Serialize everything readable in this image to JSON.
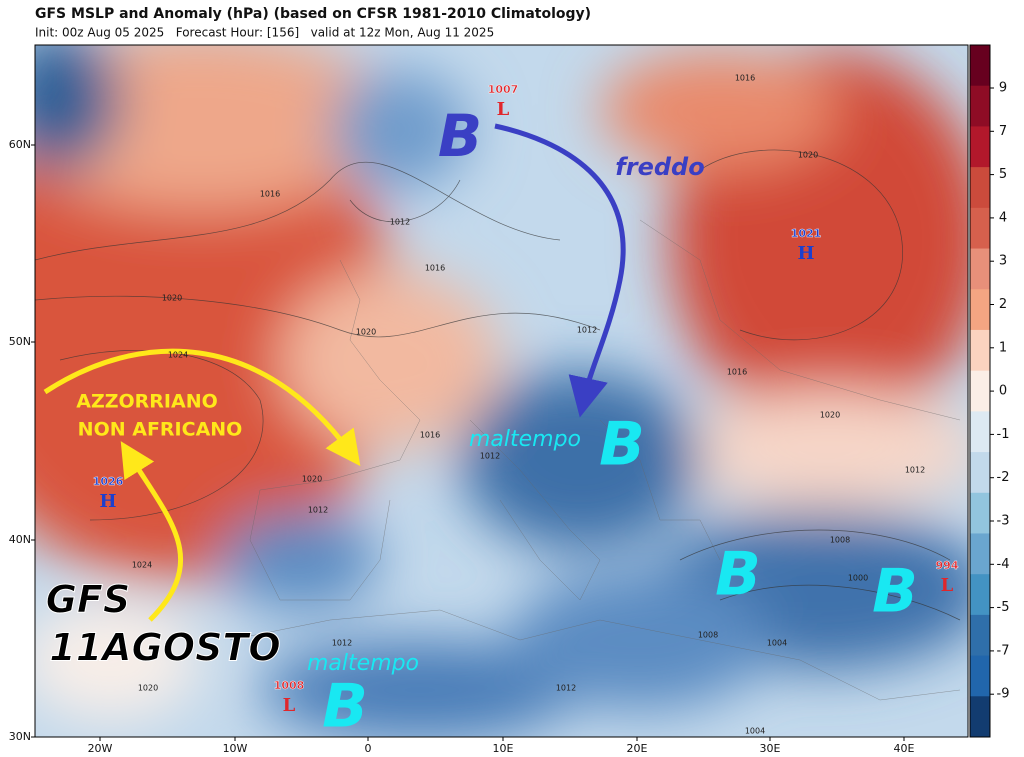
{
  "header": {
    "title": "GFS MSLP and Anomaly (hPa) (based on CFSR 1981-2010 Climatology)",
    "subtitle": "Init: 00z Aug 05 2025   Forecast Hour: [156]   valid at 12z Mon, Aug 11 2025"
  },
  "map": {
    "lat_labels": [
      "60N",
      "50N",
      "40N",
      "30N"
    ],
    "lon_labels": [
      "20W",
      "10W",
      "0",
      "10E",
      "20E",
      "30E",
      "40E"
    ],
    "colorbar": [
      9,
      7,
      5,
      4,
      3,
      2,
      1,
      0,
      -1,
      -2,
      -3,
      -4,
      -5,
      -7,
      -9
    ],
    "isobars": [
      1016,
      1020,
      1016,
      1012,
      1016,
      1020,
      1020,
      1024,
      1012,
      1016,
      1020,
      1016,
      1012,
      1020,
      1012,
      1012,
      1008,
      1000,
      1024,
      1008,
      1004,
      1012,
      1020,
      1012,
      1004
    ]
  },
  "centers": [
    {
      "value": 1007,
      "kind": "L"
    },
    {
      "value": 1021,
      "kind": "H"
    },
    {
      "value": 1026,
      "kind": "H"
    },
    {
      "value": 994,
      "kind": "L"
    },
    {
      "value": 1008,
      "kind": "L"
    }
  ],
  "annotations": [
    "B",
    "freddo",
    "AZZORRIANO",
    "NON AFRICANO",
    "maltempo",
    "B",
    "B",
    "B",
    "GFS",
    "11AGOSTO",
    "maltempo",
    "B"
  ]
}
